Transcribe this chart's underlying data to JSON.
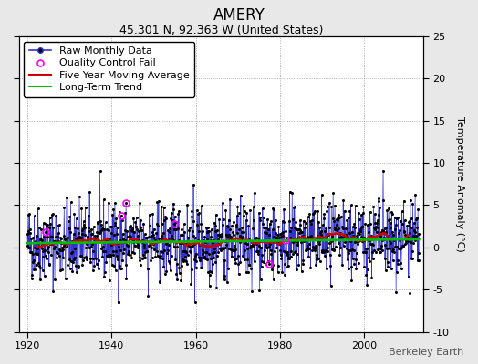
{
  "title": "AMERY",
  "subtitle": "45.301 N, 92.363 W (United States)",
  "ylabel": "Temperature Anomaly (°C)",
  "watermark": "Berkeley Earth",
  "xlim": [
    1918,
    2014
  ],
  "ylim": [
    -10,
    25
  ],
  "yticks": [
    -10,
    -5,
    0,
    5,
    10,
    15,
    20,
    25
  ],
  "xticks": [
    1920,
    1940,
    1960,
    1980,
    2000
  ],
  "seed": 42,
  "start_year": 1920,
  "end_year": 2013,
  "noise_std": 2.2,
  "trend_slope": 0.005,
  "trend_intercept": 0.5,
  "moving_avg_window": 60,
  "bg_color": "#e8e8e8",
  "plot_bg_color": "#ffffff",
  "line_color": "#3333cc",
  "dot_color": "#000000",
  "ma_color": "#cc0000",
  "trend_color": "#00bb00",
  "qc_fail_color": "#ff00ff",
  "title_fontsize": 12,
  "subtitle_fontsize": 9,
  "ylabel_fontsize": 8,
  "tick_fontsize": 8,
  "legend_fontsize": 8,
  "watermark_fontsize": 8
}
